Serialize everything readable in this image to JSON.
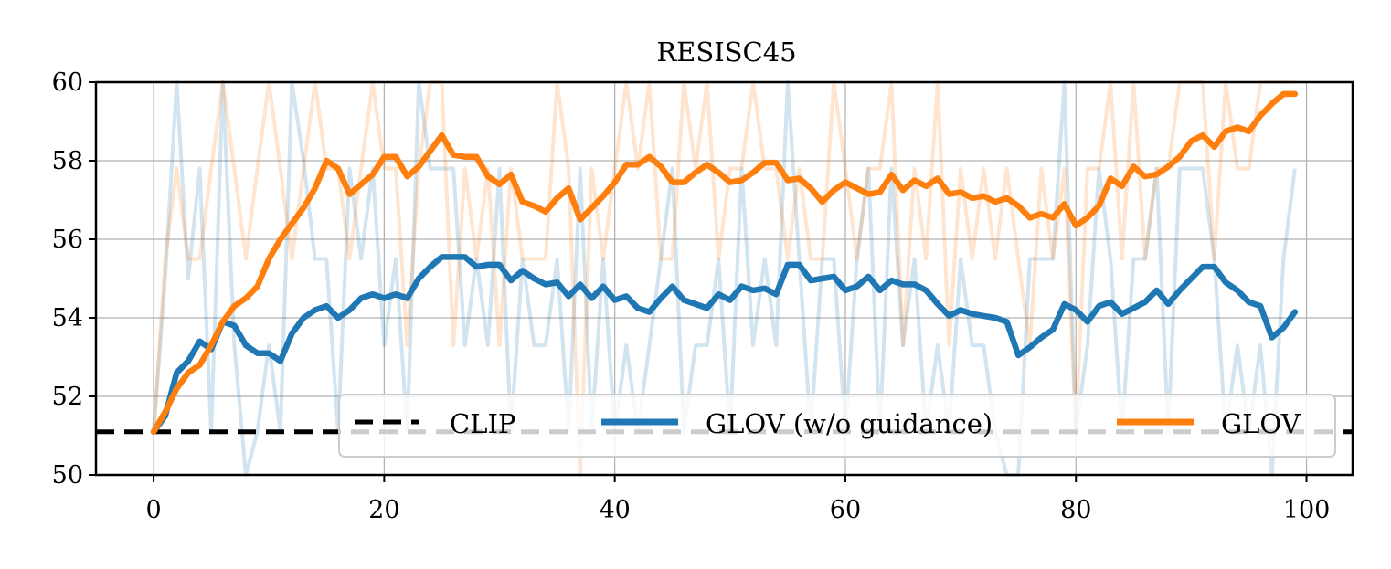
{
  "chart_data": {
    "type": "line",
    "title": "RESISC45",
    "xlabel": "",
    "ylabel": "",
    "xlim": [
      -5,
      104
    ],
    "ylim": [
      50,
      60
    ],
    "xticks": [
      0,
      20,
      40,
      60,
      80,
      100
    ],
    "yticks": [
      50,
      52,
      54,
      56,
      58,
      60
    ],
    "xtick_labels": [
      "0",
      "20",
      "40",
      "60",
      "80",
      "100"
    ],
    "ytick_labels": [
      "50",
      "52",
      "54",
      "56",
      "58",
      "60"
    ],
    "grid": true,
    "legend_position": "lower-center",
    "baseline": {
      "name": "CLIP",
      "value": 51.1,
      "style": "dashed",
      "color": "#000000"
    },
    "series": [
      {
        "name": "GLOV (w/o guidance)",
        "color": "#1f77b4",
        "x": [
          0,
          1,
          2,
          3,
          4,
          5,
          6,
          7,
          8,
          9,
          10,
          11,
          12,
          13,
          14,
          15,
          16,
          17,
          18,
          19,
          20,
          21,
          22,
          23,
          24,
          25,
          26,
          27,
          28,
          29,
          30,
          31,
          32,
          33,
          34,
          35,
          36,
          37,
          38,
          39,
          40,
          41,
          42,
          43,
          44,
          45,
          46,
          47,
          48,
          49,
          50,
          51,
          52,
          53,
          54,
          55,
          56,
          57,
          58,
          59,
          60,
          61,
          62,
          63,
          64,
          65,
          66,
          67,
          68,
          69,
          70,
          71,
          72,
          73,
          74,
          75,
          76,
          77,
          78,
          79,
          80,
          81,
          82,
          83,
          84,
          85,
          86,
          87,
          88,
          89,
          90,
          91,
          92,
          93,
          94,
          95,
          96,
          97,
          98,
          99
        ],
        "values": [
          51.1,
          51.5,
          52.6,
          52.9,
          53.4,
          53.2,
          53.9,
          53.8,
          53.3,
          53.1,
          53.1,
          52.9,
          53.6,
          54.0,
          54.2,
          54.3,
          54.0,
          54.2,
          54.5,
          54.6,
          54.5,
          54.6,
          54.5,
          55.0,
          55.3,
          55.55,
          55.55,
          55.55,
          55.3,
          55.35,
          55.35,
          54.95,
          55.2,
          55.0,
          54.85,
          54.9,
          54.55,
          54.85,
          54.5,
          54.8,
          54.45,
          54.55,
          54.25,
          54.15,
          54.5,
          54.8,
          54.45,
          54.35,
          54.25,
          54.6,
          54.45,
          54.8,
          54.7,
          54.75,
          54.6,
          55.35,
          55.35,
          54.95,
          55.0,
          55.05,
          54.7,
          54.8,
          55.05,
          54.7,
          54.95,
          54.85,
          54.85,
          54.7,
          54.35,
          54.05,
          54.2,
          54.1,
          54.05,
          54.0,
          53.9,
          53.05,
          53.25,
          53.5,
          53.7,
          54.35,
          54.2,
          53.9,
          54.3,
          54.4,
          54.1,
          54.25,
          54.4,
          54.7,
          54.35,
          54.7,
          55.0,
          55.3,
          55.3,
          54.9,
          54.7,
          54.4,
          54.3,
          53.5,
          53.75,
          54.15
        ]
      },
      {
        "name": "GLOV",
        "color": "#ff7f0e",
        "x": [
          0,
          1,
          2,
          3,
          4,
          5,
          6,
          7,
          8,
          9,
          10,
          11,
          12,
          13,
          14,
          15,
          16,
          17,
          18,
          19,
          20,
          21,
          22,
          23,
          24,
          25,
          26,
          27,
          28,
          29,
          30,
          31,
          32,
          33,
          34,
          35,
          36,
          37,
          38,
          39,
          40,
          41,
          42,
          43,
          44,
          45,
          46,
          47,
          48,
          49,
          50,
          51,
          52,
          53,
          54,
          55,
          56,
          57,
          58,
          59,
          60,
          61,
          62,
          63,
          64,
          65,
          66,
          67,
          68,
          69,
          70,
          71,
          72,
          73,
          74,
          75,
          76,
          77,
          78,
          79,
          80,
          81,
          82,
          83,
          84,
          85,
          86,
          87,
          88,
          89,
          90,
          91,
          92,
          93,
          94,
          95,
          96,
          97,
          98,
          99
        ],
        "values": [
          51.1,
          51.6,
          52.2,
          52.6,
          52.8,
          53.3,
          53.9,
          54.3,
          54.5,
          54.8,
          55.5,
          56.0,
          56.4,
          56.8,
          57.3,
          58.0,
          57.8,
          57.15,
          57.4,
          57.65,
          58.1,
          58.1,
          57.6,
          57.85,
          58.25,
          58.65,
          58.15,
          58.1,
          58.1,
          57.6,
          57.4,
          57.65,
          56.95,
          56.85,
          56.7,
          57.05,
          57.3,
          56.5,
          56.8,
          57.1,
          57.45,
          57.9,
          57.9,
          58.1,
          57.85,
          57.45,
          57.45,
          57.7,
          57.9,
          57.7,
          57.45,
          57.5,
          57.7,
          57.95,
          57.95,
          57.5,
          57.55,
          57.3,
          56.95,
          57.25,
          57.45,
          57.3,
          57.15,
          57.2,
          57.65,
          57.25,
          57.5,
          57.35,
          57.55,
          57.15,
          57.2,
          57.05,
          57.1,
          56.95,
          57.05,
          56.85,
          56.55,
          56.65,
          56.55,
          56.9,
          56.35,
          56.55,
          56.85,
          57.55,
          57.35,
          57.85,
          57.6,
          57.65,
          57.85,
          58.1,
          58.5,
          58.65,
          58.35,
          58.75,
          58.85,
          58.75,
          59.15,
          59.45,
          59.7,
          59.7
        ]
      }
    ],
    "background_series": [
      {
        "name": "GLOV (w/o guidance) raw",
        "color": "#1f77b4",
        "values": [
          51.1,
          55.0,
          60.0,
          55.0,
          57.8,
          51.1,
          60.0,
          53.3,
          50.0,
          51.1,
          53.3,
          51.1,
          60.0,
          58.0,
          55.5,
          55.5,
          51.1,
          57.8,
          55.5,
          57.8,
          53.3,
          55.5,
          51.1,
          60.0,
          57.8,
          57.8,
          57.8,
          53.3,
          55.5,
          53.3,
          57.8,
          51.1,
          55.5,
          53.3,
          53.3,
          55.5,
          51.1,
          57.8,
          51.1,
          55.5,
          51.1,
          53.3,
          51.1,
          53.3,
          55.5,
          57.8,
          51.1,
          53.3,
          53.3,
          55.5,
          51.1,
          57.8,
          53.3,
          55.5,
          53.3,
          60.0,
          55.5,
          51.1,
          55.5,
          55.5,
          51.1,
          55.5,
          57.8,
          51.1,
          57.8,
          53.3,
          55.5,
          51.1,
          53.3,
          51.1,
          55.5,
          53.3,
          53.3,
          51.1,
          50.0,
          50.0,
          55.5,
          55.5,
          55.5,
          60.0,
          51.1,
          53.3,
          57.8,
          55.5,
          51.1,
          55.5,
          55.5,
          57.8,
          51.1,
          57.8,
          57.8,
          57.8,
          55.5,
          51.1,
          53.3,
          51.1,
          53.3,
          50.0,
          55.5,
          57.8
        ]
      },
      {
        "name": "GLOV raw",
        "color": "#ff7f0e",
        "values": [
          51.1,
          55.5,
          57.8,
          55.5,
          55.5,
          57.8,
          60.0,
          57.8,
          55.5,
          57.8,
          60.0,
          57.8,
          55.5,
          57.8,
          60.0,
          57.8,
          57.8,
          55.5,
          57.8,
          60.0,
          57.8,
          57.8,
          53.3,
          57.8,
          60.0,
          60.0,
          53.3,
          57.8,
          55.5,
          57.8,
          53.3,
          57.8,
          55.5,
          55.5,
          55.5,
          60.0,
          57.8,
          50.0,
          57.8,
          55.5,
          57.8,
          60.0,
          57.8,
          60.0,
          55.5,
          55.5,
          60.0,
          57.8,
          60.0,
          55.5,
          57.8,
          57.8,
          60.0,
          57.8,
          57.8,
          55.5,
          57.8,
          55.5,
          55.5,
          60.0,
          57.8,
          55.5,
          57.8,
          57.8,
          60.0,
          53.3,
          57.8,
          55.5,
          60.0,
          53.3,
          57.8,
          55.5,
          57.8,
          55.5,
          57.8,
          55.5,
          53.3,
          57.8,
          55.5,
          57.8,
          51.1,
          57.8,
          57.8,
          60.0,
          55.5,
          60.0,
          55.5,
          57.8,
          57.8,
          60.0,
          60.0,
          60.0,
          55.5,
          60.0,
          57.8,
          57.8,
          60.0,
          60.0,
          60.0,
          60.0
        ]
      }
    ]
  }
}
